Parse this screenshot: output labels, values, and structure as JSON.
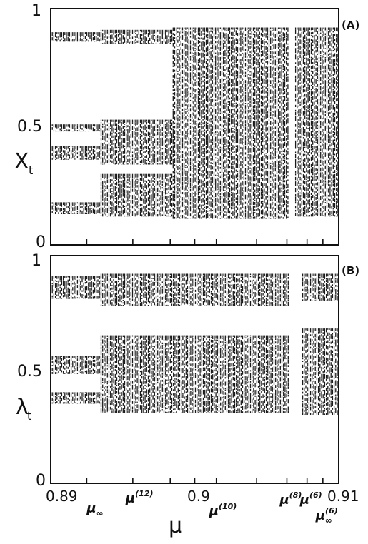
{
  "chart_data": [
    {
      "type": "scatter",
      "panel": "(A)",
      "ylabel": "X",
      "ylabel_sub": "t",
      "xlim": [
        0.89,
        0.91
      ],
      "ylim": [
        0,
        1
      ],
      "y_ticks": [
        "0",
        "0.5",
        "1"
      ],
      "bands": [
        {
          "from": 0.89,
          "to": 0.8935,
          "y": [
            0.13,
            0.18,
            0.36,
            0.42,
            0.48,
            0.51,
            0.86,
            0.9
          ]
        },
        {
          "from": 0.8935,
          "to": 0.8985,
          "y": [
            0.12,
            0.3,
            0.34,
            0.53,
            0.85,
            0.91
          ]
        },
        {
          "from": 0.8985,
          "to": 0.9065,
          "y": [
            0.11,
            0.92
          ]
        },
        {
          "from": 0.907,
          "to": 0.91,
          "y": [
            0.12,
            0.92
          ]
        }
      ]
    },
    {
      "type": "scatter",
      "panel": "(B)",
      "ylabel": "λ",
      "ylabel_sub": "t",
      "xlabel": "μ",
      "xlim": [
        0.89,
        0.91
      ],
      "ylim": [
        0,
        1
      ],
      "y_ticks": [
        "0",
        "0.5",
        "1"
      ],
      "x_ticks": [
        "0.89",
        "0.9",
        "0.91"
      ],
      "bands": [
        {
          "from": 0.89,
          "to": 0.8935,
          "y": [
            0.35,
            0.4,
            0.48,
            0.56,
            0.81,
            0.91
          ]
        },
        {
          "from": 0.8935,
          "to": 0.9065,
          "y": [
            0.31,
            0.65,
            0.78,
            0.92
          ]
        },
        {
          "from": 0.9075,
          "to": 0.91,
          "y": [
            0.3,
            0.68,
            0.8,
            0.92
          ]
        }
      ],
      "x_markers": [
        {
          "base": "μ",
          "sup": "",
          "sub": "∞",
          "x": 0.893
        },
        {
          "base": "μ",
          "sup": "(12)",
          "sub": "",
          "x": 0.8957
        },
        {
          "base": "μ",
          "sup": "(10)",
          "sub": "",
          "x": 0.9015
        },
        {
          "base": "μ",
          "sup": "(8)",
          "sub": "",
          "x": 0.9064
        },
        {
          "base": "μ",
          "sup": "(6)",
          "sub": "",
          "x": 0.9078
        },
        {
          "base": "μ",
          "sup": "(6)",
          "sub": "∞",
          "x": 0.9089
        }
      ]
    }
  ]
}
